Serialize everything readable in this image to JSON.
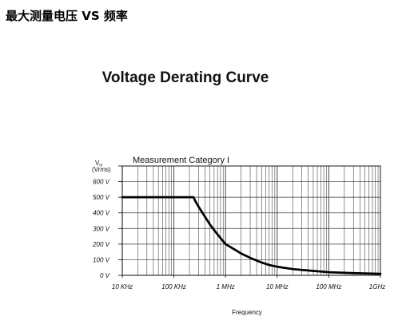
{
  "heading": "最大测量电压 VS 频率",
  "chart_data": {
    "type": "line",
    "title": "Voltage Derating Curve",
    "subtitle": "Measurement Category I",
    "xlabel": "Frequency",
    "ylabel": {
      "symbol": "V",
      "subscript": "in",
      "unit": "(Vrms)"
    },
    "x_scale": "log",
    "xlim": [
      10000,
      1000000000
    ],
    "ylim": [
      0,
      700
    ],
    "grid": true,
    "x_ticks": [
      {
        "value": 10000,
        "label": "10 KHz"
      },
      {
        "value": 100000,
        "label": "100 KHz"
      },
      {
        "value": 1000000,
        "label": "1 MHz"
      },
      {
        "value": 10000000,
        "label": "10 MHz"
      },
      {
        "value": 100000000,
        "label": "100 MHz"
      },
      {
        "value": 1000000000,
        "label": "1GHz"
      }
    ],
    "y_ticks": [
      {
        "value": 600,
        "label": "600 V"
      },
      {
        "value": 500,
        "label": "500 V"
      },
      {
        "value": 400,
        "label": "400 V"
      },
      {
        "value": 300,
        "label": "300 V"
      },
      {
        "value": 200,
        "label": "200 V"
      },
      {
        "value": 100,
        "label": "100 V"
      },
      {
        "value": 0,
        "label": "0 V"
      }
    ],
    "colors": {
      "curve": "#000000",
      "grid": "#3a3a3a",
      "frame": "#000000"
    },
    "series": [
      {
        "x": [
          10000,
          240000,
          260000,
          300000,
          350000,
          400000,
          500000,
          600000,
          700000,
          850000,
          1000000,
          1500000,
          2000000,
          3000000,
          5000000,
          7000000,
          10000000,
          20000000,
          50000000,
          100000000,
          300000000,
          1000000000
        ],
        "y": [
          500,
          500,
          475,
          440,
          405,
          375,
          325,
          290,
          262,
          228,
          200,
          165,
          140,
          112,
          82,
          66,
          55,
          40,
          28,
          20,
          14,
          10
        ]
      }
    ]
  }
}
